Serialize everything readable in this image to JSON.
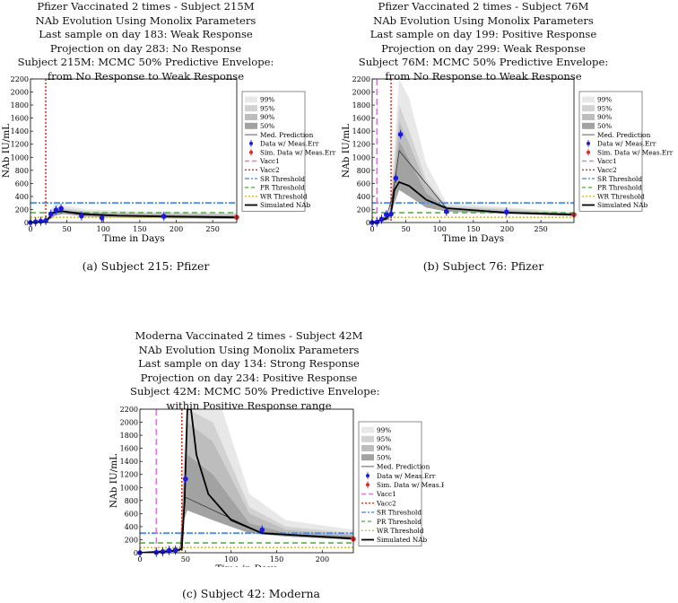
{
  "legend": [
    "99%",
    "95%",
    "90%",
    "50%",
    "Med. Prediction",
    "Data w/ Meas.Err",
    "Sim. Data w/ Meas.Err",
    "Vacc1",
    "Vacc2",
    "SR Threshold",
    "PR Threshold",
    "WR Threshold",
    "Simulated NAb"
  ],
  "colors": {
    "vacc1": "#dd77dd",
    "vacc2": "#e8331c",
    "sr": "#4d8fe3",
    "pr": "#57b24e",
    "wr": "#d9c033",
    "data": "#1a1ad9",
    "sim": "#e02a2a"
  },
  "chart_data": [
    {
      "type": "line",
      "caption": "(a) Subject 215: Pfizer",
      "title": [
        "Pfizer Vaccinated 2 times - Subject 215M",
        "NAb Evolution Using Monolix Parameters",
        "Last sample on day 183: Weak Response",
        "Projection on day 283: No Response",
        "Subject 215M: MCMC 50% Predictive Envelope:",
        "from No Response to Weak Response"
      ],
      "xlabel": "Time in Days",
      "ylabel": "NAb IU/mL",
      "xlim": [
        0,
        283
      ],
      "ylim": [
        0,
        2200
      ],
      "xticks": [
        0,
        50,
        100,
        150,
        200,
        250
      ],
      "yticks": [
        0,
        200,
        400,
        600,
        800,
        1000,
        1200,
        1400,
        1600,
        1800,
        2000,
        2200
      ],
      "vacc1": null,
      "vacc2": 21,
      "sr": 300,
      "pr": 150,
      "wr": 80,
      "data": [
        [
          0,
          0
        ],
        [
          7,
          10
        ],
        [
          14,
          20
        ],
        [
          21,
          30
        ],
        [
          28,
          130
        ],
        [
          35,
          190
        ],
        [
          42,
          215
        ],
        [
          70,
          100
        ],
        [
          98,
          70
        ],
        [
          183,
          95
        ]
      ],
      "sim": [
        283,
        80
      ],
      "bands": {
        "b99": [
          [
            0,
            0
          ],
          [
            21,
            60
          ],
          [
            35,
            330
          ],
          [
            45,
            260
          ],
          [
            80,
            200
          ],
          [
            150,
            170
          ],
          [
            283,
            150
          ]
        ],
        "b95": [
          [
            0,
            0
          ],
          [
            21,
            40
          ],
          [
            35,
            250
          ],
          [
            45,
            220
          ],
          [
            80,
            170
          ],
          [
            150,
            150
          ],
          [
            283,
            130
          ]
        ],
        "b90": [
          [
            0,
            0
          ],
          [
            21,
            30
          ],
          [
            35,
            210
          ],
          [
            45,
            200
          ],
          [
            80,
            160
          ],
          [
            150,
            140
          ],
          [
            283,
            120
          ]
        ],
        "b50": [
          [
            0,
            0
          ],
          [
            21,
            20
          ],
          [
            35,
            170
          ],
          [
            45,
            175
          ],
          [
            80,
            140
          ],
          [
            150,
            120
          ],
          [
            283,
            100
          ]
        ],
        "low": [
          [
            0,
            0
          ],
          [
            21,
            10
          ],
          [
            35,
            110
          ],
          [
            45,
            130
          ],
          [
            80,
            90
          ],
          [
            150,
            70
          ],
          [
            283,
            55
          ]
        ]
      },
      "med": [
        [
          0,
          0
        ],
        [
          21,
          15
        ],
        [
          28,
          120
        ],
        [
          42,
          180
        ],
        [
          100,
          110
        ],
        [
          183,
          90
        ],
        [
          283,
          75
        ]
      ],
      "nab": [
        [
          0,
          0
        ],
        [
          21,
          15
        ],
        [
          26,
          80
        ],
        [
          30,
          150
        ],
        [
          42,
          175
        ],
        [
          70,
          130
        ],
        [
          120,
          105
        ],
        [
          200,
          90
        ],
        [
          283,
          80
        ]
      ]
    },
    {
      "type": "line",
      "caption": "(b) Subject 76: Pfizer",
      "title": [
        "Pfizer Vaccinated 2 times - Subject 76M",
        "NAb Evolution Using Monolix Parameters",
        "Last sample on day 199: Positive Response",
        "Projection on day 299: Weak Response",
        "Subject 76M: MCMC 50% Predictive Envelope:",
        "from No Response to Weak Response"
      ],
      "xlabel": "Time in Days",
      "ylabel": "NAb IU/mL",
      "xlim": [
        0,
        299
      ],
      "ylim": [
        0,
        2200
      ],
      "xticks": [
        0,
        50,
        100,
        150,
        200,
        250
      ],
      "yticks": [
        0,
        200,
        400,
        600,
        800,
        1000,
        1200,
        1400,
        1600,
        1800,
        2000,
        2200
      ],
      "vacc1": 7,
      "vacc2": 28,
      "sr": 300,
      "pr": 150,
      "wr": 80,
      "data": [
        [
          0,
          0
        ],
        [
          7,
          5
        ],
        [
          14,
          50
        ],
        [
          21,
          120
        ],
        [
          28,
          130
        ],
        [
          35,
          680
        ],
        [
          42,
          1350
        ],
        [
          110,
          170
        ],
        [
          199,
          160
        ]
      ],
      "sim": [
        299,
        120
      ],
      "bands": {
        "b99": [
          [
            0,
            0
          ],
          [
            25,
            120
          ],
          [
            33,
            1200
          ],
          [
            40,
            2200
          ],
          [
            55,
            1900
          ],
          [
            80,
            900
          ],
          [
            110,
            300
          ],
          [
            299,
            160
          ]
        ],
        "b95": [
          [
            0,
            0
          ],
          [
            25,
            100
          ],
          [
            33,
            900
          ],
          [
            40,
            1800
          ],
          [
            55,
            1400
          ],
          [
            80,
            650
          ],
          [
            110,
            260
          ],
          [
            299,
            150
          ]
        ],
        "b90": [
          [
            0,
            0
          ],
          [
            25,
            90
          ],
          [
            33,
            800
          ],
          [
            40,
            1550
          ],
          [
            55,
            1200
          ],
          [
            80,
            560
          ],
          [
            110,
            240
          ],
          [
            299,
            140
          ]
        ],
        "b50": [
          [
            0,
            0
          ],
          [
            25,
            70
          ],
          [
            33,
            600
          ],
          [
            40,
            1250
          ],
          [
            55,
            950
          ],
          [
            80,
            450
          ],
          [
            110,
            210
          ],
          [
            299,
            130
          ]
        ],
        "low": [
          [
            0,
            0
          ],
          [
            25,
            40
          ],
          [
            33,
            300
          ],
          [
            40,
            500
          ],
          [
            55,
            400
          ],
          [
            80,
            230
          ],
          [
            110,
            170
          ],
          [
            299,
            100
          ]
        ]
      },
      "med": [
        [
          0,
          0
        ],
        [
          21,
          80
        ],
        [
          30,
          400
        ],
        [
          40,
          1100
        ],
        [
          110,
          220
        ],
        [
          199,
          160
        ],
        [
          299,
          130
        ]
      ],
      "nab": [
        [
          0,
          0
        ],
        [
          21,
          60
        ],
        [
          28,
          150
        ],
        [
          33,
          500
        ],
        [
          40,
          620
        ],
        [
          55,
          560
        ],
        [
          80,
          350
        ],
        [
          110,
          220
        ],
        [
          200,
          150
        ],
        [
          299,
          120
        ]
      ]
    },
    {
      "type": "line",
      "caption": "(c) Subject 42: Moderna",
      "title": [
        "Moderna Vaccinated 2 times - Subject 42M",
        "NAb Evolution Using Monolix Parameters",
        "Last sample on day 134: Strong Response",
        "Projection on day 234: Positive Response",
        "Subject 42M: MCMC 50% Predictive Envelope:",
        "within Positive Response range"
      ],
      "xlabel": "Time in Days",
      "ylabel": "NAb IU/mL",
      "xlim": [
        0,
        234
      ],
      "ylim": [
        0,
        2200
      ],
      "xticks": [
        0,
        50,
        100,
        150,
        200
      ],
      "yticks": [
        0,
        200,
        400,
        600,
        800,
        1000,
        1200,
        1400,
        1600,
        1800,
        2000,
        2200
      ],
      "vacc1": 18,
      "vacc2": 46,
      "sr": 300,
      "pr": 150,
      "wr": 80,
      "data": [
        [
          0,
          0
        ],
        [
          18,
          5
        ],
        [
          25,
          15
        ],
        [
          32,
          35
        ],
        [
          39,
          40
        ],
        [
          50,
          1130
        ],
        [
          134,
          350
        ]
      ],
      "sim": [
        234,
        210
      ],
      "bands": {
        "b99": [
          [
            0,
            0
          ],
          [
            44,
            100
          ],
          [
            48,
            1500
          ],
          [
            52,
            2200
          ],
          [
            90,
            2200
          ],
          [
            120,
            900
          ],
          [
            160,
            500
          ],
          [
            234,
            350
          ]
        ],
        "b95": [
          [
            0,
            0
          ],
          [
            44,
            80
          ],
          [
            48,
            1300
          ],
          [
            52,
            2200
          ],
          [
            80,
            2000
          ],
          [
            120,
            700
          ],
          [
            160,
            400
          ],
          [
            234,
            300
          ]
        ],
        "b90": [
          [
            0,
            0
          ],
          [
            44,
            70
          ],
          [
            48,
            1150
          ],
          [
            52,
            2000
          ],
          [
            80,
            1700
          ],
          [
            120,
            600
          ],
          [
            160,
            350
          ],
          [
            234,
            280
          ]
        ],
        "b50": [
          [
            0,
            0
          ],
          [
            44,
            50
          ],
          [
            48,
            1000
          ],
          [
            52,
            1500
          ],
          [
            80,
            1200
          ],
          [
            120,
            450
          ],
          [
            160,
            300
          ],
          [
            234,
            260
          ]
        ],
        "low": [
          [
            0,
            0
          ],
          [
            44,
            20
          ],
          [
            48,
            500
          ],
          [
            52,
            650
          ],
          [
            80,
            500
          ],
          [
            120,
            300
          ],
          [
            160,
            250
          ],
          [
            234,
            200
          ]
        ]
      },
      "med": [
        [
          0,
          0
        ],
        [
          44,
          40
        ],
        [
          50,
          850
        ],
        [
          134,
          300
        ],
        [
          234,
          230
        ]
      ],
      "nab": [
        [
          0,
          0
        ],
        [
          40,
          30
        ],
        [
          46,
          60
        ],
        [
          49,
          800
        ],
        [
          52,
          2200
        ],
        [
          56,
          2200
        ],
        [
          62,
          1500
        ],
        [
          75,
          900
        ],
        [
          100,
          500
        ],
        [
          134,
          300
        ],
        [
          234,
          215
        ]
      ]
    }
  ]
}
